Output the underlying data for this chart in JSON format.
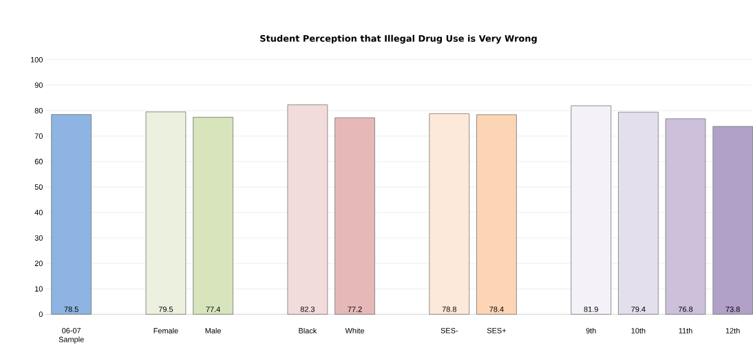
{
  "chart_data": {
    "type": "bar",
    "title": "Student Perception that Illegal Drug Use is Very Wrong",
    "categories": [
      "06-07 Sample",
      null,
      "Female",
      "Male",
      null,
      "Black",
      "White",
      null,
      "SES-",
      "SES+",
      null,
      "9th",
      "10th",
      "11th",
      "12th"
    ],
    "values": [
      78.5,
      null,
      79.5,
      77.4,
      null,
      82.3,
      77.2,
      null,
      78.8,
      78.4,
      null,
      81.9,
      79.4,
      76.8,
      73.8
    ],
    "colors": [
      "#8db4e2",
      null,
      "#ebf1de",
      "#d7e4bc",
      null,
      "#f2dcdb",
      "#e6b9b8",
      null,
      "#fde9d9",
      "#fcd5b4",
      null,
      "#f4f2f8",
      "#e4dfec",
      "#ccc0da",
      "#b1a0c7"
    ],
    "ylim": [
      0,
      100
    ],
    "yticks": [
      0,
      10,
      20,
      30,
      40,
      50,
      60,
      70,
      80,
      90,
      100
    ],
    "grid": "y",
    "data_labels": true
  }
}
